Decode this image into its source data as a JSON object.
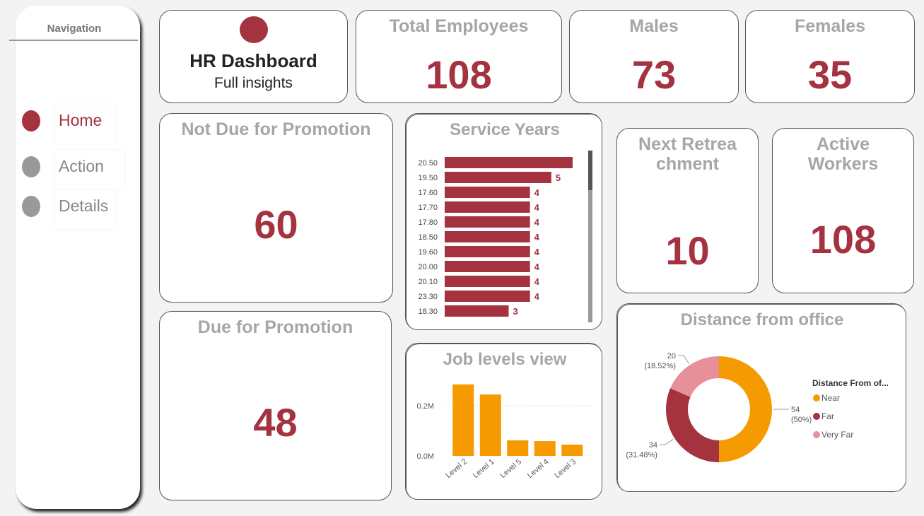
{
  "nav": {
    "title": "Navigation",
    "items": [
      "Home",
      "Action",
      "Details"
    ]
  },
  "header": {
    "title": "HR Dashboard",
    "subtitle": "Full insights"
  },
  "cards": [
    {
      "title": "Total Employees",
      "value": 108
    },
    {
      "title": "Males",
      "value": 73
    },
    {
      "title": "Females",
      "value": 35
    },
    {
      "title": "Not Due for Promotion",
      "value": 60
    },
    {
      "title": "Due for Promotion",
      "value": 48
    },
    {
      "title": "Next Retreachment",
      "value": 10
    },
    {
      "title": "Active Workers",
      "value": 108
    }
  ],
  "chart_data": [
    {
      "type": "bar",
      "orientation": "horizontal",
      "title": "Service Years",
      "categories": [
        "20.50",
        "19.50",
        "17.60",
        "17.70",
        "17.80",
        "18.50",
        "19.60",
        "20.00",
        "20.10",
        "23.30",
        "18.30"
      ],
      "values": [
        6,
        5,
        4,
        4,
        4,
        4,
        4,
        4,
        4,
        4,
        3
      ],
      "color": "#a4323f",
      "xlim": [
        0,
        6
      ]
    },
    {
      "type": "bar",
      "title": "Job levels view",
      "categories": [
        "Level 2",
        "Level 1",
        "Level 5",
        "Level 4",
        "Level 3"
      ],
      "values": [
        285000,
        245000,
        62000,
        59000,
        45000
      ],
      "color": "#f59a00",
      "ylim": [
        0,
        300000
      ],
      "yticks": [
        {
          "value": 0,
          "label": "0.0M"
        },
        {
          "value": 200000,
          "label": "0.2M"
        }
      ],
      "grid": true
    },
    {
      "type": "pie",
      "donut": true,
      "title": "Distance from office",
      "legend_title": "Distance From of...",
      "categories": [
        "Near",
        "Far",
        "Very Far"
      ],
      "values": [
        54,
        34,
        20
      ],
      "percent_labels": [
        "(50%)",
        "(31.48%)",
        "(18.52%)"
      ],
      "colors": [
        "#f59a00",
        "#a4323f",
        "#e8909a"
      ]
    }
  ]
}
